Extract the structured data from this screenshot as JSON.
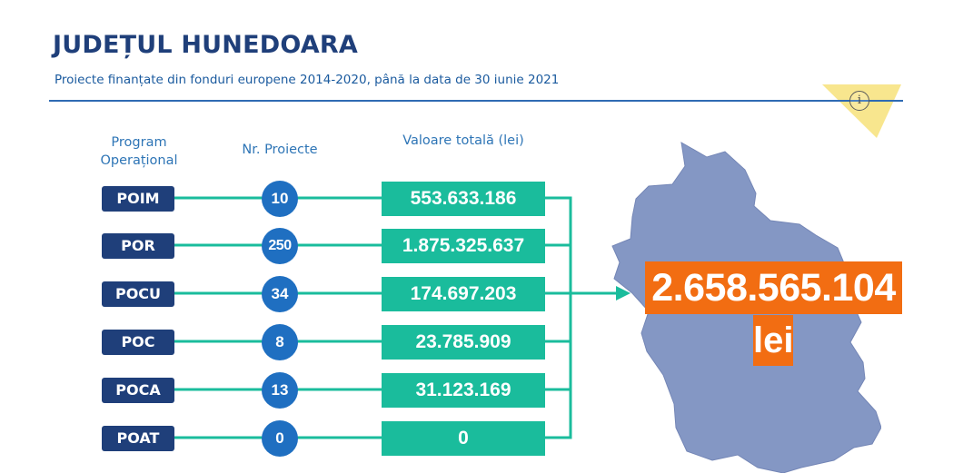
{
  "header": {
    "title": "JUDEȚUL HUNEDOARA",
    "subtitle": "Proiecte finanțate din fonduri europene 2014-2020, până la data de 30 iunie 2021",
    "info_icon": "info-icon",
    "info_glyph": "i"
  },
  "columns": {
    "program": "Program Operațional",
    "nr": "Nr. Proiecte",
    "value": "Valoare totală (lei)"
  },
  "rows": [
    {
      "program": "POIM",
      "nr": "10",
      "value": "553.633.186"
    },
    {
      "program": "POR",
      "nr": "250",
      "value": "1.875.325.637"
    },
    {
      "program": "POCU",
      "nr": "34",
      "value": "174.697.203"
    },
    {
      "program": "POC",
      "nr": "8",
      "value": "23.785.909"
    },
    {
      "program": "POCA",
      "nr": "13",
      "value": "31.123.169"
    },
    {
      "program": "POAT",
      "nr": "0",
      "value": "0"
    }
  ],
  "total": {
    "amount": "2.658.565.104",
    "unit": "lei"
  },
  "colors": {
    "title": "#1f3f7a",
    "subtitle": "#1a5a9e",
    "program_box": "#1f3f7a",
    "nr_circle": "#1f6fc1",
    "value_box": "#1abc9c",
    "connector": "#1abc9c",
    "map_fill": "#8497c4",
    "total_box": "#f26d12",
    "corner_triangle": "#f7e27a"
  }
}
